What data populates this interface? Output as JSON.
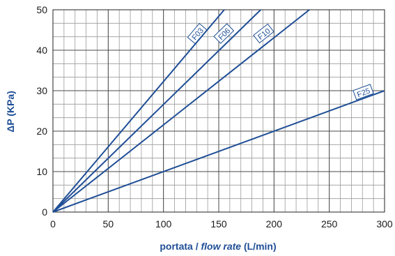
{
  "chart_data": {
    "type": "line",
    "title": "",
    "xlabel": {
      "prefix": "portata / ",
      "italic": "flow rate",
      "suffix": " (L/min)"
    },
    "ylabel": "ΔP (KPa)",
    "xlim": [
      0,
      300
    ],
    "ylim": [
      0,
      50
    ],
    "x_ticks": [
      0,
      50,
      100,
      150,
      200,
      250,
      300
    ],
    "y_ticks": [
      0,
      10,
      20,
      30,
      40,
      50
    ],
    "grid": true,
    "minor_grid": {
      "x_step": 10,
      "y_step": 3.3333
    },
    "line_color": "#1f4e96",
    "series": [
      {
        "name": "F03",
        "x": [
          0,
          155
        ],
        "y": [
          0,
          50
        ],
        "label_at": [
          131,
          44
        ]
      },
      {
        "name": "F06",
        "x": [
          0,
          188
        ],
        "y": [
          0,
          50
        ],
        "label_at": [
          155,
          44
        ]
      },
      {
        "name": "F10",
        "x": [
          0,
          232
        ],
        "y": [
          0,
          50
        ],
        "label_at": [
          191,
          44
        ]
      },
      {
        "name": "F25",
        "x": [
          0,
          300
        ],
        "y": [
          0,
          30
        ],
        "label_at": [
          281,
          29.5
        ]
      }
    ]
  }
}
